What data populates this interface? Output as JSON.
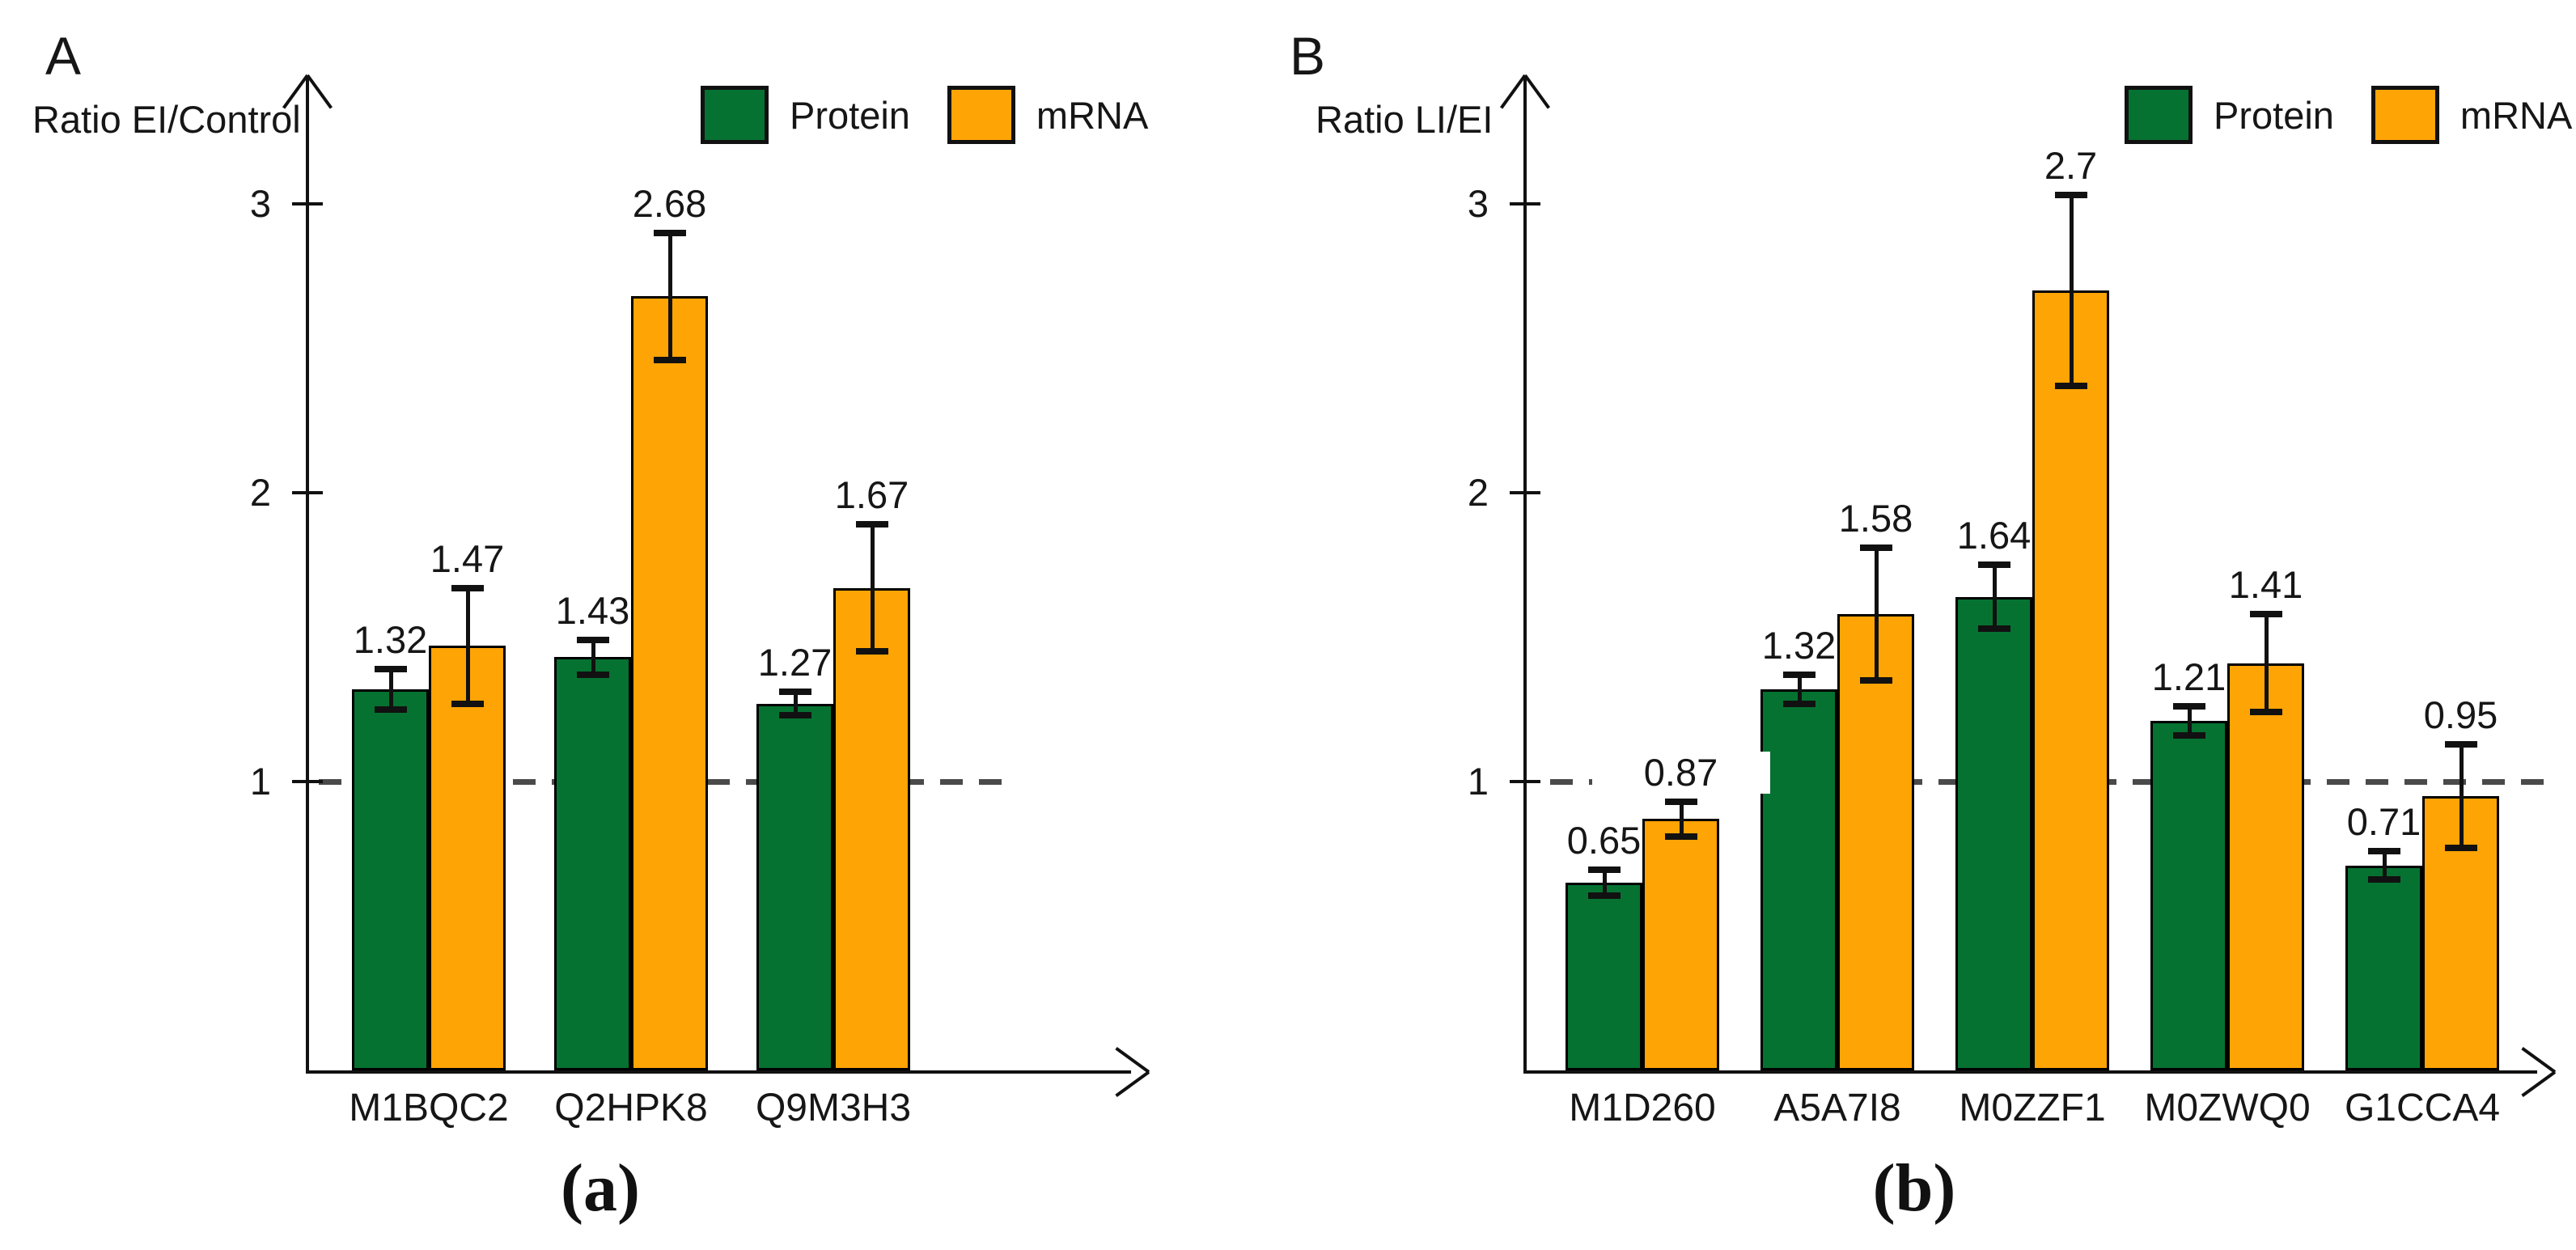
{
  "figure": {
    "background": "#ffffff",
    "text_color": "#161616",
    "reference_line_color": "#4a4a4a"
  },
  "chart_data": [
    {
      "type": "bar",
      "panel_letter": "A",
      "title": "",
      "ylabel": "Ratio EI/Control",
      "xlabel": "",
      "caption": "(a)",
      "categories": [
        "M1BQC2",
        "Q2HPK8",
        "Q9M3H3"
      ],
      "series": [
        {
          "name": "Protein",
          "color": "#067231",
          "values": [
            1.32,
            1.43,
            1.27
          ],
          "errors": [
            0.07,
            0.06,
            0.04
          ]
        },
        {
          "name": "mRNA",
          "color": "#FFA405",
          "values": [
            1.47,
            2.68,
            1.67
          ],
          "errors": [
            0.2,
            0.22,
            0.22
          ]
        }
      ],
      "value_labels": [
        "1.32",
        "1.47",
        "1.43",
        "2.68",
        "1.27",
        "1.67"
      ],
      "y_ticks": [
        1,
        2,
        3
      ],
      "ylim": [
        0,
        3.45
      ],
      "reference_line": 1,
      "grid": false,
      "legend_position": "top-right",
      "legend_entries": [
        "Protein",
        "mRNA"
      ]
    },
    {
      "type": "bar",
      "panel_letter": "B",
      "title": "",
      "ylabel": "Ratio LI/EI",
      "xlabel": "",
      "caption": "(b)",
      "categories": [
        "M1D260",
        "A5A7I8",
        "M0ZZF1",
        "M0ZWQ0",
        "G1CCA4"
      ],
      "series": [
        {
          "name": "Protein",
          "color": "#067231",
          "values": [
            0.65,
            1.32,
            1.64,
            1.21,
            0.71
          ],
          "errors": [
            0.045,
            0.05,
            0.11,
            0.05,
            0.05
          ]
        },
        {
          "name": "mRNA",
          "color": "#FFA405",
          "values": [
            0.87,
            1.58,
            2.7,
            1.41,
            0.95
          ],
          "errors": [
            0.06,
            0.23,
            0.33,
            0.17,
            0.18
          ]
        }
      ],
      "value_labels": [
        "0.65",
        "0.87",
        "1.32",
        "1.58",
        "1.64",
        "2.7",
        "1.21",
        "1.41",
        "0.71",
        "0.95"
      ],
      "y_ticks": [
        1,
        2,
        3
      ],
      "ylim": [
        0,
        3.45
      ],
      "reference_line": 1,
      "grid": false,
      "legend_position": "top-right",
      "legend_entries": [
        "Protein",
        "mRNA"
      ]
    }
  ]
}
